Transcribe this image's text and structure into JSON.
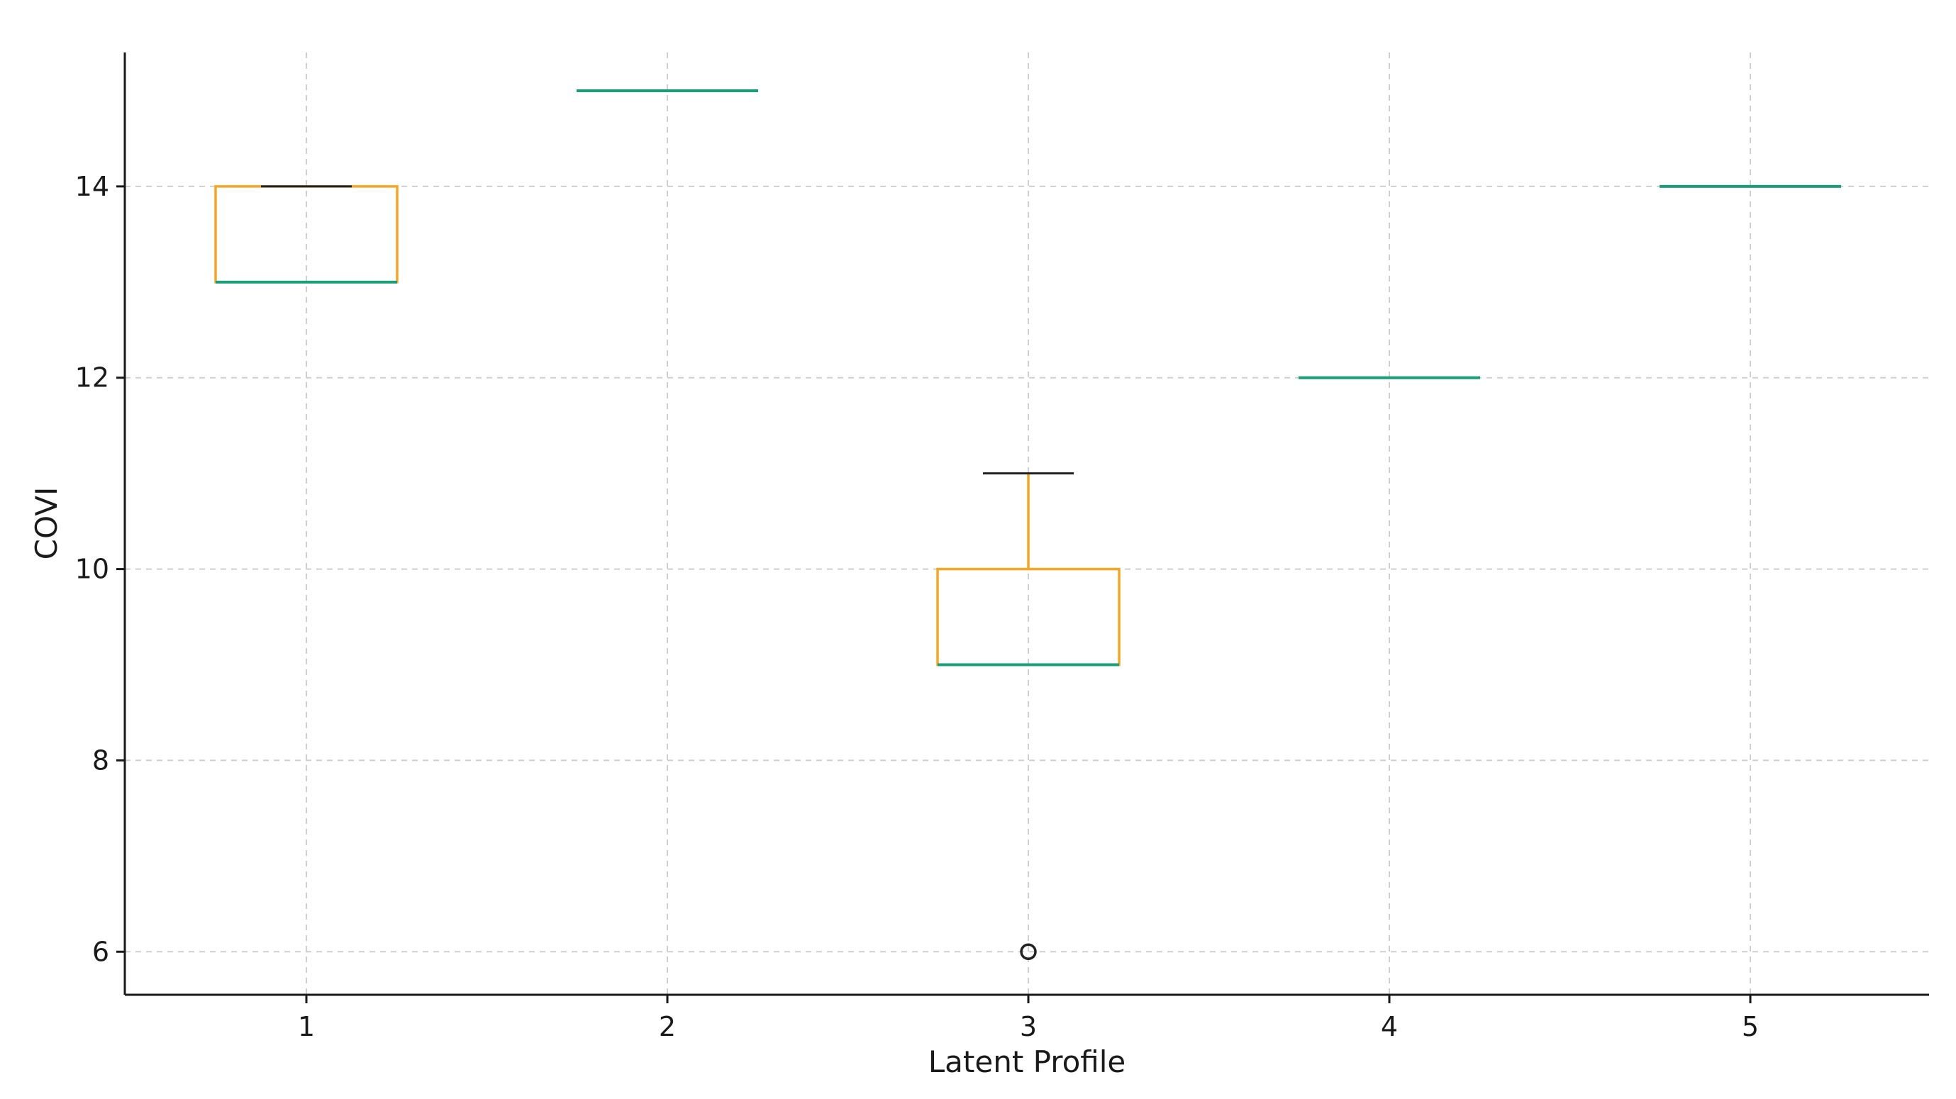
{
  "chart_data": {
    "type": "box",
    "xlabel": "Latent Profile",
    "ylabel": "COVI",
    "ylim": [
      5.55,
      15.4
    ],
    "yticks": [
      6,
      8,
      10,
      12,
      14
    ],
    "grid": true,
    "categories": [
      "1",
      "2",
      "3",
      "4",
      "5"
    ],
    "boxes": [
      {
        "category": "1",
        "whislo": 13,
        "q1": 13,
        "median": 13,
        "q3": 14,
        "whishi": 14,
        "fliers": []
      },
      {
        "category": "2",
        "whislo": 15,
        "q1": 15,
        "median": 15,
        "q3": 15,
        "whishi": 15,
        "fliers": []
      },
      {
        "category": "3",
        "whislo": 9,
        "q1": 9,
        "median": 9,
        "q3": 10,
        "whishi": 11,
        "fliers": [
          6
        ]
      },
      {
        "category": "4",
        "whislo": 12,
        "q1": 12,
        "median": 12,
        "q3": 12,
        "whishi": 12,
        "fliers": []
      },
      {
        "category": "5",
        "whislo": 14,
        "q1": 14,
        "median": 14,
        "q3": 14,
        "whishi": 14,
        "fliers": []
      }
    ],
    "colors": {
      "box": "#F5A623",
      "whisker": "#F5A623",
      "median": "#1A9E77",
      "cap": "#222222",
      "flier": "#222222",
      "grid": "#cfcfcf",
      "axis": "#1a1a1a"
    }
  }
}
